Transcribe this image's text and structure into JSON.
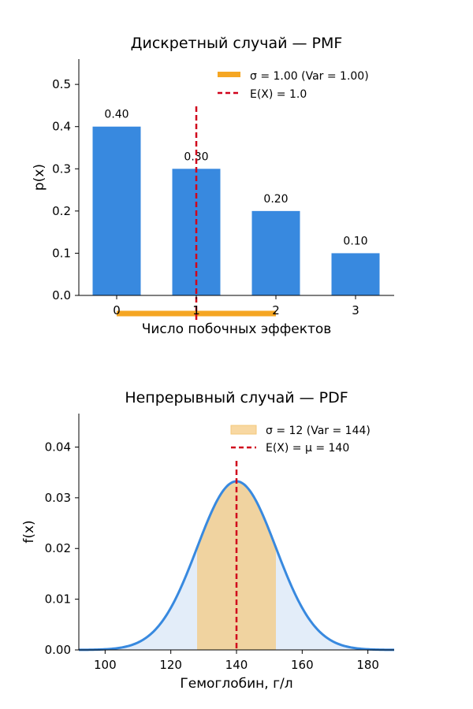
{
  "chart_data": [
    {
      "type": "bar",
      "title": "Дискретный случай — PMF",
      "xlabel": "Число побочных эффектов",
      "ylabel": "p(x)",
      "categories": [
        "0",
        "1",
        "2",
        "3"
      ],
      "values": [
        0.4,
        0.3,
        0.2,
        0.1
      ],
      "value_labels": [
        "0.40",
        "0.30",
        "0.20",
        "0.10"
      ],
      "ylim": [
        0,
        0.56
      ],
      "yticks": [
        0.0,
        0.1,
        0.2,
        0.3,
        0.4,
        0.5
      ],
      "ytick_labels": [
        "0.0",
        "0.1",
        "0.2",
        "0.3",
        "0.4",
        "0.5"
      ],
      "bar_color": "#3889df",
      "mean": 1.0,
      "sigma": 1.0,
      "sigma_interval": [
        0,
        2
      ],
      "sigma_color": "#f5a623",
      "mean_color": "#d0021b",
      "legend": {
        "placement": "top-right",
        "entries": [
          "σ = 1.00  (Var = 1.00)",
          "E(X) = 1.0"
        ]
      },
      "grid": false
    },
    {
      "type": "area",
      "title": "Непрерывный случай — PDF",
      "xlabel": "Гемоглобин, г/л",
      "ylabel": "f(x)",
      "mu": 140,
      "sigma": 12,
      "xlim": [
        92,
        188
      ],
      "ylim": [
        0,
        0.0466
      ],
      "xticks": [
        100,
        120,
        140,
        160,
        180
      ],
      "xtick_labels": [
        "100",
        "120",
        "140",
        "160",
        "180"
      ],
      "yticks": [
        0.0,
        0.01,
        0.02,
        0.03,
        0.04
      ],
      "ytick_labels": [
        "0.00",
        "0.01",
        "0.02",
        "0.03",
        "0.04"
      ],
      "line_color": "#3889df",
      "fill_color": "#dce9f8",
      "sigma_band": [
        128,
        152
      ],
      "sigma_band_color": "#f5c77a",
      "mean_color": "#d0021b",
      "legend": {
        "placement": "top-right",
        "entries": [
          "σ = 12  (Var = 144)",
          "E(X) = μ = 140"
        ]
      },
      "grid": false
    }
  ]
}
